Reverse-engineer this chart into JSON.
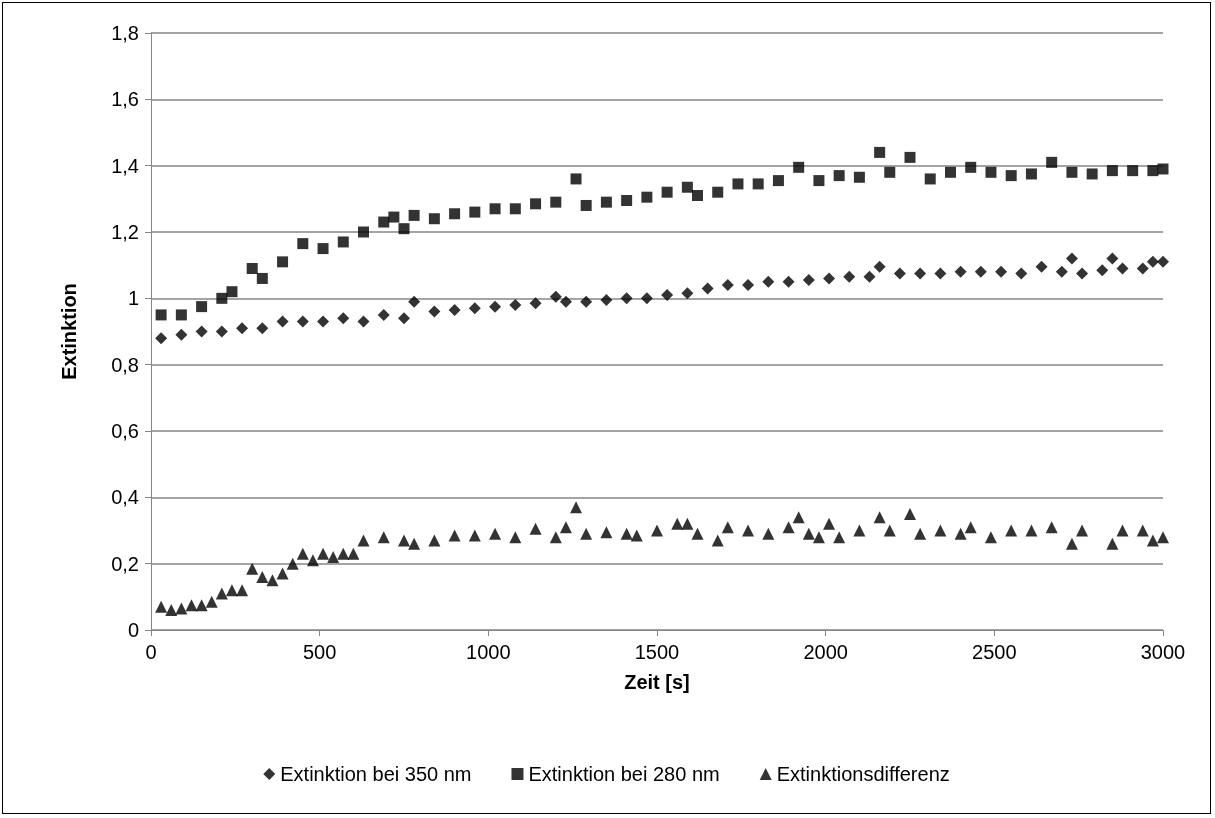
{
  "chart_data": {
    "type": "scatter",
    "xlabel": "Zeit [s]",
    "ylabel": "Extinktion",
    "xlim": [
      0,
      3000
    ],
    "xticks": [
      0,
      500,
      1000,
      1500,
      2000,
      2500,
      3000
    ],
    "ylim": [
      0,
      1.8
    ],
    "yticks": [
      0,
      {
        "value": 0.2,
        "label": "0,2"
      },
      {
        "value": 0.4,
        "label": "0,4"
      },
      {
        "value": 0.6,
        "label": "0,6"
      },
      {
        "value": 0.8,
        "label": "0,8"
      },
      1,
      {
        "value": 1.2,
        "label": "1,2"
      },
      {
        "value": 1.4,
        "label": "1,4"
      },
      {
        "value": 1.6,
        "label": "1,6"
      },
      {
        "value": 1.8,
        "label": "1,8"
      }
    ],
    "grid": "y",
    "legend": "bottom",
    "series": [
      {
        "name": "Extinktion bei 350 nm",
        "color": "#000000",
        "marker": "diamond",
        "x": [
          30,
          90,
          150,
          210,
          270,
          330,
          390,
          450,
          510,
          570,
          630,
          690,
          750,
          780,
          840,
          900,
          960,
          1020,
          1080,
          1140,
          1200,
          1230,
          1290,
          1350,
          1410,
          1470,
          1530,
          1590,
          1650,
          1710,
          1770,
          1830,
          1890,
          1950,
          2010,
          2070,
          2130,
          2160,
          2220,
          2280,
          2340,
          2400,
          2460,
          2520,
          2580,
          2640,
          2700,
          2730,
          2760,
          2820,
          2850,
          2880,
          2940,
          2970,
          3000
        ],
        "values": [
          0.88,
          0.89,
          0.9,
          0.9,
          0.91,
          0.91,
          0.93,
          0.93,
          0.93,
          0.94,
          0.93,
          0.95,
          0.94,
          0.99,
          0.96,
          0.965,
          0.97,
          0.975,
          0.98,
          0.985,
          1.005,
          0.99,
          0.99,
          0.995,
          1.0,
          1.0,
          1.01,
          1.015,
          1.03,
          1.04,
          1.04,
          1.05,
          1.05,
          1.055,
          1.06,
          1.065,
          1.065,
          1.095,
          1.075,
          1.075,
          1.075,
          1.08,
          1.08,
          1.08,
          1.075,
          1.095,
          1.08,
          1.12,
          1.075,
          1.085,
          1.12,
          1.09,
          1.09,
          1.11,
          1.11
        ]
      },
      {
        "name": "Extinktion bei 280 nm",
        "color": "#000000",
        "marker": "square",
        "x": [
          30,
          90,
          150,
          210,
          240,
          300,
          330,
          390,
          450,
          510,
          570,
          630,
          690,
          720,
          750,
          780,
          840,
          900,
          960,
          1020,
          1080,
          1140,
          1200,
          1260,
          1290,
          1350,
          1410,
          1470,
          1530,
          1590,
          1620,
          1680,
          1740,
          1800,
          1860,
          1920,
          1980,
          2040,
          2100,
          2160,
          2190,
          2250,
          2310,
          2370,
          2430,
          2490,
          2550,
          2610,
          2670,
          2730,
          2790,
          2850,
          2910,
          2970,
          3000
        ],
        "values": [
          0.95,
          0.95,
          0.975,
          1.0,
          1.02,
          1.09,
          1.06,
          1.11,
          1.165,
          1.15,
          1.17,
          1.2,
          1.23,
          1.245,
          1.21,
          1.25,
          1.24,
          1.255,
          1.26,
          1.27,
          1.27,
          1.285,
          1.29,
          1.36,
          1.28,
          1.29,
          1.295,
          1.305,
          1.32,
          1.335,
          1.31,
          1.32,
          1.345,
          1.345,
          1.355,
          1.395,
          1.355,
          1.37,
          1.365,
          1.44,
          1.38,
          1.425,
          1.36,
          1.38,
          1.395,
          1.38,
          1.37,
          1.375,
          1.41,
          1.38,
          1.375,
          1.385,
          1.385,
          1.385,
          1.39
        ]
      },
      {
        "name": "Extinktionsdifferenz",
        "color": "#000000",
        "marker": "triangle",
        "x": [
          30,
          60,
          90,
          120,
          150,
          180,
          210,
          240,
          270,
          300,
          330,
          360,
          390,
          420,
          450,
          480,
          510,
          540,
          570,
          600,
          630,
          690,
          750,
          780,
          840,
          900,
          960,
          1020,
          1080,
          1140,
          1200,
          1230,
          1260,
          1290,
          1350,
          1410,
          1440,
          1500,
          1560,
          1590,
          1620,
          1680,
          1710,
          1770,
          1830,
          1890,
          1920,
          1950,
          1980,
          2010,
          2040,
          2100,
          2160,
          2190,
          2250,
          2280,
          2340,
          2400,
          2430,
          2490,
          2550,
          2610,
          2670,
          2730,
          2760,
          2850,
          2880,
          2940,
          2970,
          3000
        ],
        "values": [
          0.07,
          0.06,
          0.065,
          0.075,
          0.075,
          0.085,
          0.11,
          0.12,
          0.12,
          0.185,
          0.16,
          0.15,
          0.17,
          0.2,
          0.23,
          0.21,
          0.23,
          0.22,
          0.23,
          0.23,
          0.27,
          0.28,
          0.27,
          0.26,
          0.27,
          0.285,
          0.285,
          0.29,
          0.28,
          0.305,
          0.28,
          0.31,
          0.37,
          0.29,
          0.295,
          0.29,
          0.285,
          0.3,
          0.32,
          0.32,
          0.29,
          0.27,
          0.31,
          0.3,
          0.29,
          0.31,
          0.34,
          0.29,
          0.28,
          0.32,
          0.28,
          0.3,
          0.34,
          0.3,
          0.35,
          0.29,
          0.3,
          0.29,
          0.31,
          0.28,
          0.3,
          0.3,
          0.31,
          0.26,
          0.3,
          0.26,
          0.3,
          0.3,
          0.27,
          0.28
        ]
      }
    ]
  }
}
